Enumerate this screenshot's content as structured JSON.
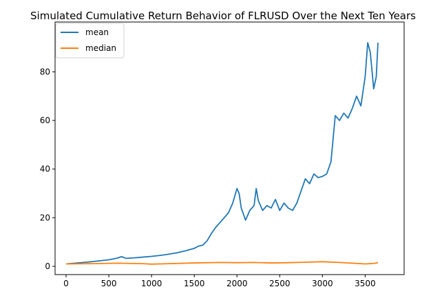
{
  "chart_data": {
    "type": "line",
    "title": "Simulated Cumulative Return Behavior of FLRUSD Over the Next Ten Years",
    "xlabel": "",
    "ylabel": "",
    "xlim": [
      0,
      3650
    ],
    "ylim": [
      0,
      92
    ],
    "xticks": [
      "0",
      "500",
      "1000",
      "1500",
      "2000",
      "2500",
      "3000",
      "3500"
    ],
    "yticks": [
      "0",
      "20",
      "40",
      "60",
      "80"
    ],
    "grid": false,
    "legend_position": "top-left",
    "series": [
      {
        "name": "mean",
        "color": "#1f77b4",
        "x": [
          0,
          100,
          200,
          300,
          400,
          500,
          600,
          650,
          700,
          800,
          900,
          1000,
          1100,
          1200,
          1300,
          1400,
          1500,
          1550,
          1600,
          1650,
          1700,
          1750,
          1800,
          1850,
          1900,
          1950,
          2000,
          2025,
          2050,
          2100,
          2150,
          2200,
          2225,
          2250,
          2300,
          2350,
          2400,
          2450,
          2500,
          2550,
          2600,
          2650,
          2700,
          2750,
          2800,
          2850,
          2900,
          2950,
          3000,
          3050,
          3100,
          3150,
          3200,
          3250,
          3300,
          3350,
          3400,
          3450,
          3500,
          3530,
          3560,
          3600,
          3630,
          3650
        ],
        "values": [
          1,
          1.3,
          1.6,
          1.9,
          2.3,
          2.7,
          3.4,
          4,
          3.3,
          3.5,
          3.8,
          4.1,
          4.5,
          5,
          5.6,
          6.4,
          7.4,
          8.3,
          8.7,
          10.5,
          13.5,
          16,
          18,
          20,
          22,
          26,
          32,
          30,
          24,
          19,
          23,
          25,
          32,
          27,
          23,
          25,
          24,
          27.5,
          23,
          26,
          24,
          23,
          26,
          31,
          36,
          34,
          38,
          36.5,
          37,
          38,
          43,
          62,
          60,
          63,
          61,
          65,
          70,
          66,
          78,
          92,
          88,
          73,
          78,
          92
        ]
      },
      {
        "name": "median",
        "color": "#ff7f0e",
        "x": [
          0,
          300,
          600,
          900,
          1000,
          1200,
          1500,
          1800,
          2000,
          2200,
          2400,
          2600,
          2800,
          3000,
          3200,
          3400,
          3500,
          3600,
          3650
        ],
        "values": [
          1,
          1.1,
          1.3,
          1.1,
          0.9,
          1.1,
          1.4,
          1.6,
          1.5,
          1.6,
          1.4,
          1.5,
          1.7,
          1.9,
          1.6,
          1.2,
          1.0,
          1.2,
          1.5
        ]
      }
    ]
  }
}
